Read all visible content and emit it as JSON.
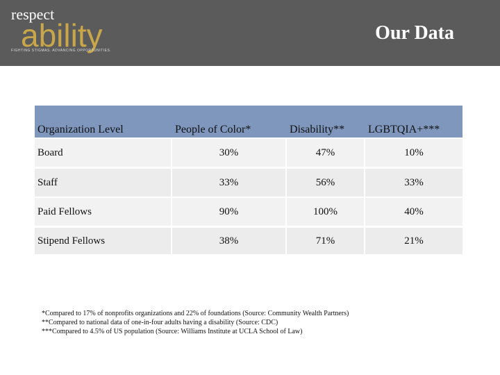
{
  "header": {
    "logo": {
      "line1": "respect",
      "line2": "ability",
      "tagline": "FIGHTING STIGMAS. ADVANCING OPPORTUNITIES."
    },
    "title": "Our Data"
  },
  "table": {
    "headers": [
      "Organization Level",
      "People of Color*",
      "Disability**",
      "LGBTQIA+***"
    ],
    "rows": [
      [
        "Board",
        "30%",
        "47%",
        "10%"
      ],
      [
        "Staff",
        "33%",
        "56%",
        "33%"
      ],
      [
        "Paid Fellows",
        "90%",
        "100%",
        "40%"
      ],
      [
        "Stipend Fellows",
        "38%",
        "71%",
        "21%"
      ]
    ]
  },
  "footnotes": [
    "*Compared to 17% of nonprofits organizations and 22% of foundations (Source: Community Wealth Partners)",
    "**Compared to national data of one-in-four adults having a disability (Source: CDC)",
    "***Compared to 4.5% of US population (Source: Williams Institute at UCLA School of Law)"
  ]
}
